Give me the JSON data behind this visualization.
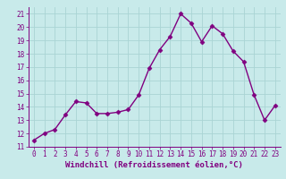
{
  "x": [
    0,
    1,
    2,
    3,
    4,
    5,
    6,
    7,
    8,
    9,
    10,
    11,
    12,
    13,
    14,
    15,
    16,
    17,
    18,
    19,
    20,
    21,
    22,
    23
  ],
  "y": [
    11.5,
    12.0,
    12.3,
    13.4,
    14.4,
    14.3,
    13.5,
    13.5,
    13.6,
    13.8,
    14.9,
    16.9,
    18.3,
    19.3,
    21.0,
    20.3,
    18.9,
    20.1,
    19.5,
    18.2,
    17.4,
    14.9,
    13.0,
    14.1
  ],
  "line_color": "#800080",
  "marker": "D",
  "markersize": 2.5,
  "linewidth": 1.0,
  "xlabel": "Windchill (Refroidissement éolien,°C)",
  "xlim": [
    -0.5,
    23.5
  ],
  "ylim": [
    11,
    21.5
  ],
  "yticks": [
    11,
    12,
    13,
    14,
    15,
    16,
    17,
    18,
    19,
    20,
    21
  ],
  "xticks": [
    0,
    1,
    2,
    3,
    4,
    5,
    6,
    7,
    8,
    9,
    10,
    11,
    12,
    13,
    14,
    15,
    16,
    17,
    18,
    19,
    20,
    21,
    22,
    23
  ],
  "background_color": "#c8eaea",
  "grid_color": "#aad4d4",
  "label_color": "#800080",
  "xlabel_fontsize": 6.5,
  "tick_fontsize": 5.5
}
